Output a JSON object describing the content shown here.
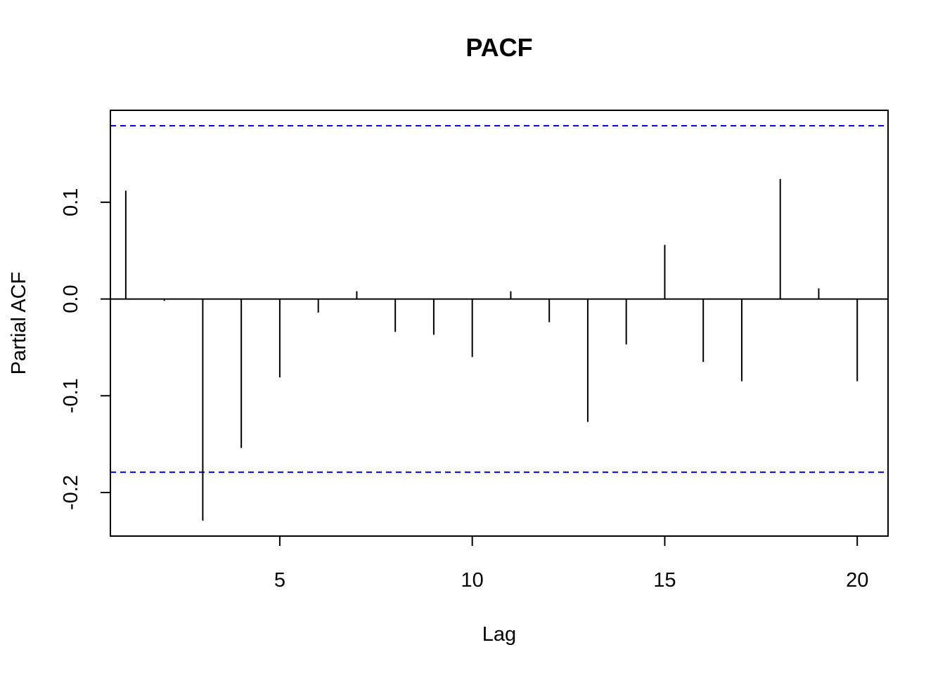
{
  "chart_data": {
    "type": "bar",
    "title": "PACF",
    "xlabel": "Lag",
    "ylabel": "Partial ACF",
    "x": [
      1,
      2,
      3,
      4,
      5,
      6,
      7,
      8,
      9,
      10,
      11,
      12,
      13,
      14,
      15,
      16,
      17,
      18,
      19,
      20
    ],
    "values": [
      0.112,
      -0.002,
      -0.229,
      -0.154,
      -0.081,
      -0.014,
      0.008,
      -0.034,
      -0.037,
      -0.06,
      0.008,
      -0.024,
      -0.127,
      -0.047,
      0.056,
      -0.065,
      -0.085,
      0.124,
      0.011,
      -0.085
    ],
    "xlim": [
      0.6,
      20.8
    ],
    "ylim": [
      -0.245,
      0.195
    ],
    "x_ticks": [
      "5",
      "10",
      "15",
      "20"
    ],
    "y_ticks": [
      "-0.2",
      "-0.1",
      "0.0",
      "0.1"
    ],
    "confidence_bound": 0.179,
    "confidence_color": "#0000ff",
    "bar_color": "#000000",
    "grid": false,
    "legend": "none"
  }
}
